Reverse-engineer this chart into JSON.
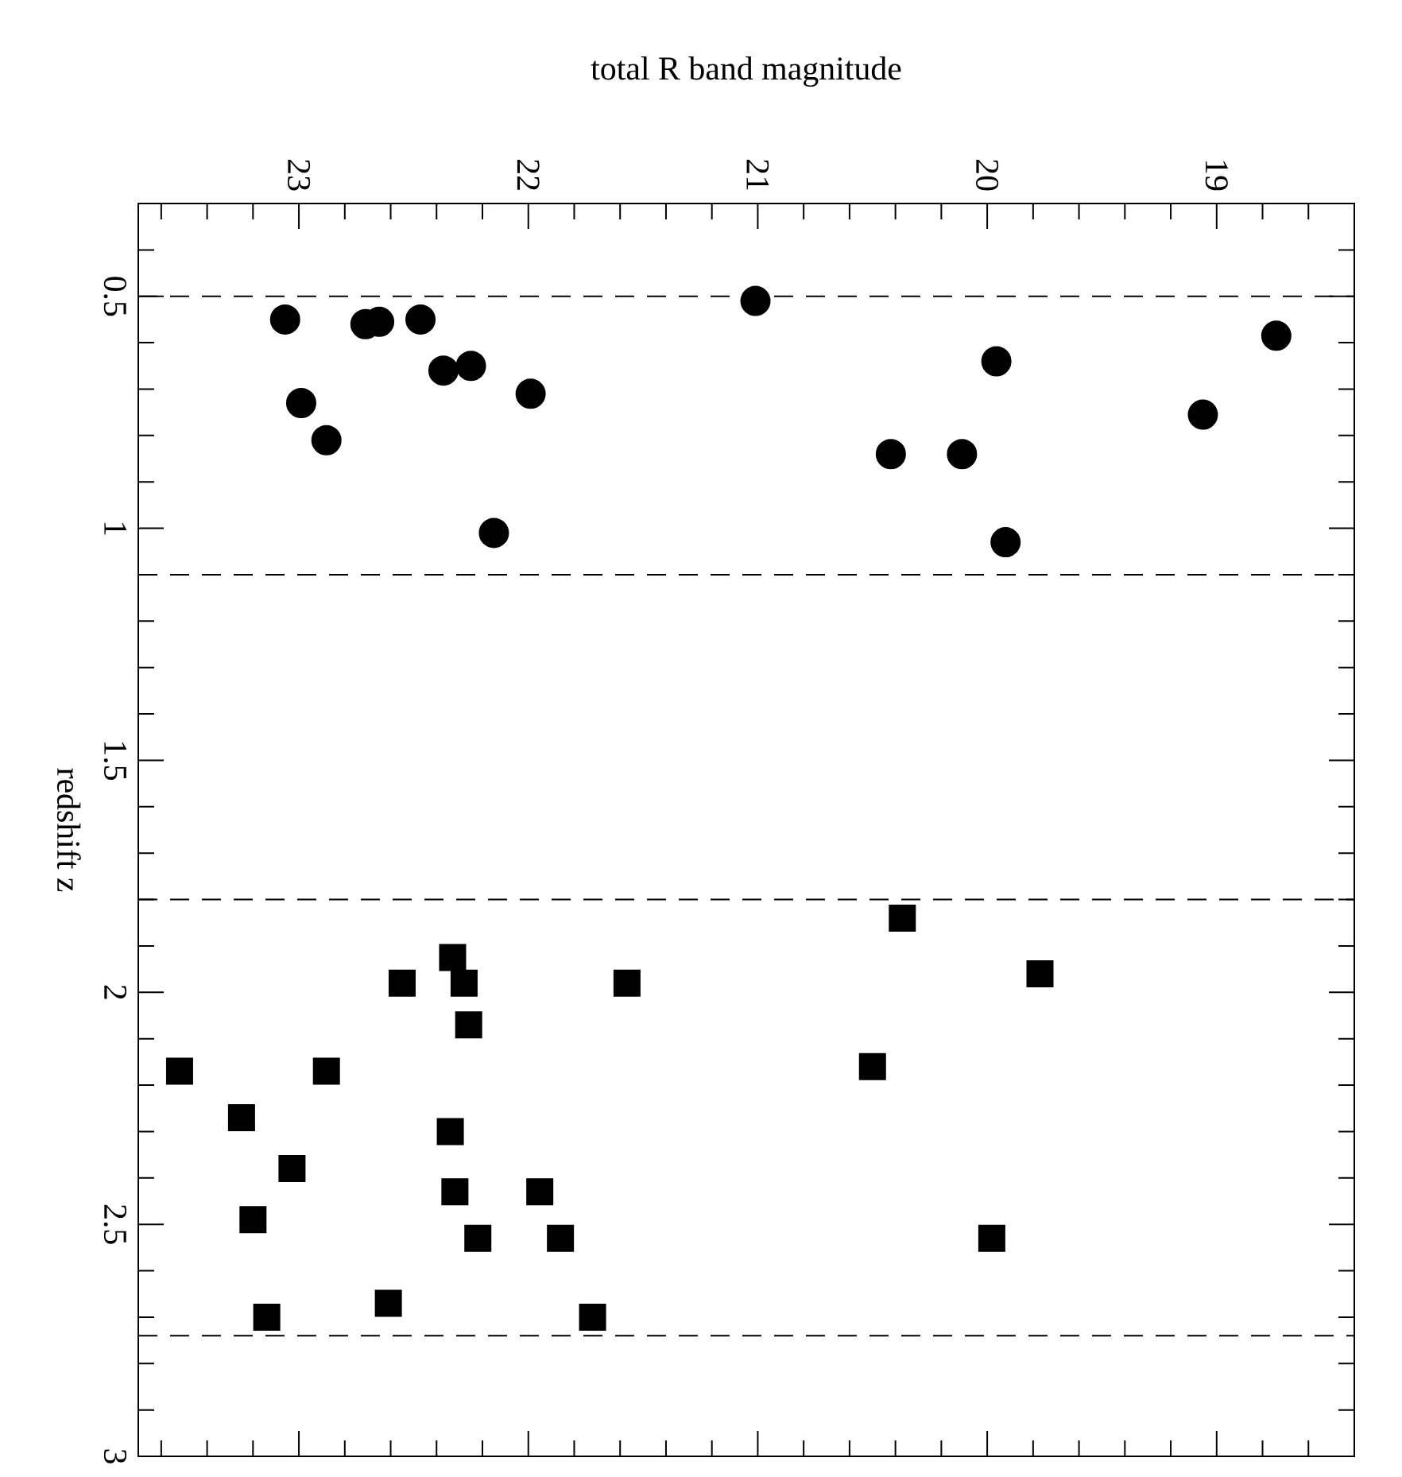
{
  "chart_data": {
    "type": "scatter",
    "xlabel": "total R band magnitude",
    "ylabel": "redshift z",
    "xlim": [
      23.7,
      18.4
    ],
    "ylim": [
      3,
      0.3
    ],
    "xticks": [
      23,
      22,
      21,
      20,
      19,
      {
        "value": 23.6,
        "label": null
      },
      {
        "value": 23.4,
        "label": null
      },
      {
        "value": 23.2,
        "label": null
      },
      {
        "value": 22.8,
        "label": null
      },
      {
        "value": 22.6,
        "label": null
      },
      {
        "value": 22.4,
        "label": null
      },
      {
        "value": 22.2,
        "label": null
      },
      {
        "value": 21.8,
        "label": null
      },
      {
        "value": 21.6,
        "label": null
      },
      {
        "value": 21.4,
        "label": null
      },
      {
        "value": 21.2,
        "label": null
      },
      {
        "value": 20.8,
        "label": null
      },
      {
        "value": 20.6,
        "label": null
      },
      {
        "value": 20.4,
        "label": null
      },
      {
        "value": 20.2,
        "label": null
      },
      {
        "value": 19.8,
        "label": null
      },
      {
        "value": 19.6,
        "label": null
      },
      {
        "value": 19.4,
        "label": null
      },
      {
        "value": 19.2,
        "label": null
      },
      {
        "value": 18.8,
        "label": null
      },
      {
        "value": 18.6,
        "label": null
      }
    ],
    "yticks": [
      0.5,
      1,
      1.5,
      2,
      2.5,
      3,
      {
        "value": 0.4,
        "label": null
      },
      {
        "value": 0.6,
        "label": null
      },
      {
        "value": 0.7,
        "label": null
      },
      {
        "value": 0.8,
        "label": null
      },
      {
        "value": 0.9,
        "label": null
      },
      {
        "value": 1.1,
        "label": null
      },
      {
        "value": 1.2,
        "label": null
      },
      {
        "value": 1.3,
        "label": null
      },
      {
        "value": 1.4,
        "label": null
      },
      {
        "value": 1.6,
        "label": null
      },
      {
        "value": 1.7,
        "label": null
      },
      {
        "value": 1.8,
        "label": null
      },
      {
        "value": 1.9,
        "label": null
      },
      {
        "value": 2.1,
        "label": null
      },
      {
        "value": 2.2,
        "label": null
      },
      {
        "value": 2.3,
        "label": null
      },
      {
        "value": 2.4,
        "label": null
      },
      {
        "value": 2.6,
        "label": null
      },
      {
        "value": 2.7,
        "label": null
      },
      {
        "value": 2.8,
        "label": null
      },
      {
        "value": 2.9,
        "label": null
      }
    ],
    "grid": false,
    "ref_lines": [
      {
        "axis": "y",
        "value": 0.5,
        "line_style": "dashed"
      },
      {
        "axis": "y",
        "value": 1.1,
        "line_style": "dashed"
      },
      {
        "axis": "y",
        "value": 1.8,
        "line_style": "dashed"
      },
      {
        "axis": "y",
        "value": 2.74,
        "line_style": "dashed"
      }
    ],
    "series": [
      {
        "color": "#000000",
        "marker": "circle",
        "x": [
          21.01,
          18.74,
          23.06,
          22.71,
          22.65,
          22.47,
          22.37,
          22.25,
          19.96,
          22.99,
          21.99,
          22.88,
          19.06,
          20.42,
          20.11,
          22.15,
          19.92
        ],
        "values": [
          0.51,
          0.585,
          0.55,
          0.56,
          0.555,
          0.55,
          0.66,
          0.65,
          0.64,
          0.73,
          0.71,
          0.81,
          0.755,
          0.84,
          0.84,
          1.01,
          1.03
        ]
      },
      {
        "color": "#000000",
        "marker": "square",
        "x": [
          20.37,
          19.77,
          22.33,
          22.28,
          22.55,
          21.57,
          22.26,
          23.52,
          22.88,
          20.5,
          23.25,
          22.34,
          23.03,
          22.32,
          21.95,
          23.2,
          22.22,
          21.86,
          19.98,
          22.61,
          23.14,
          21.72
        ],
        "values": [
          1.84,
          1.96,
          1.925,
          1.98,
          1.98,
          1.98,
          2.07,
          2.17,
          2.17,
          2.16,
          2.27,
          2.3,
          2.38,
          2.43,
          2.43,
          2.49,
          2.53,
          2.53,
          2.53,
          2.67,
          2.7,
          2.7
        ]
      }
    ]
  }
}
